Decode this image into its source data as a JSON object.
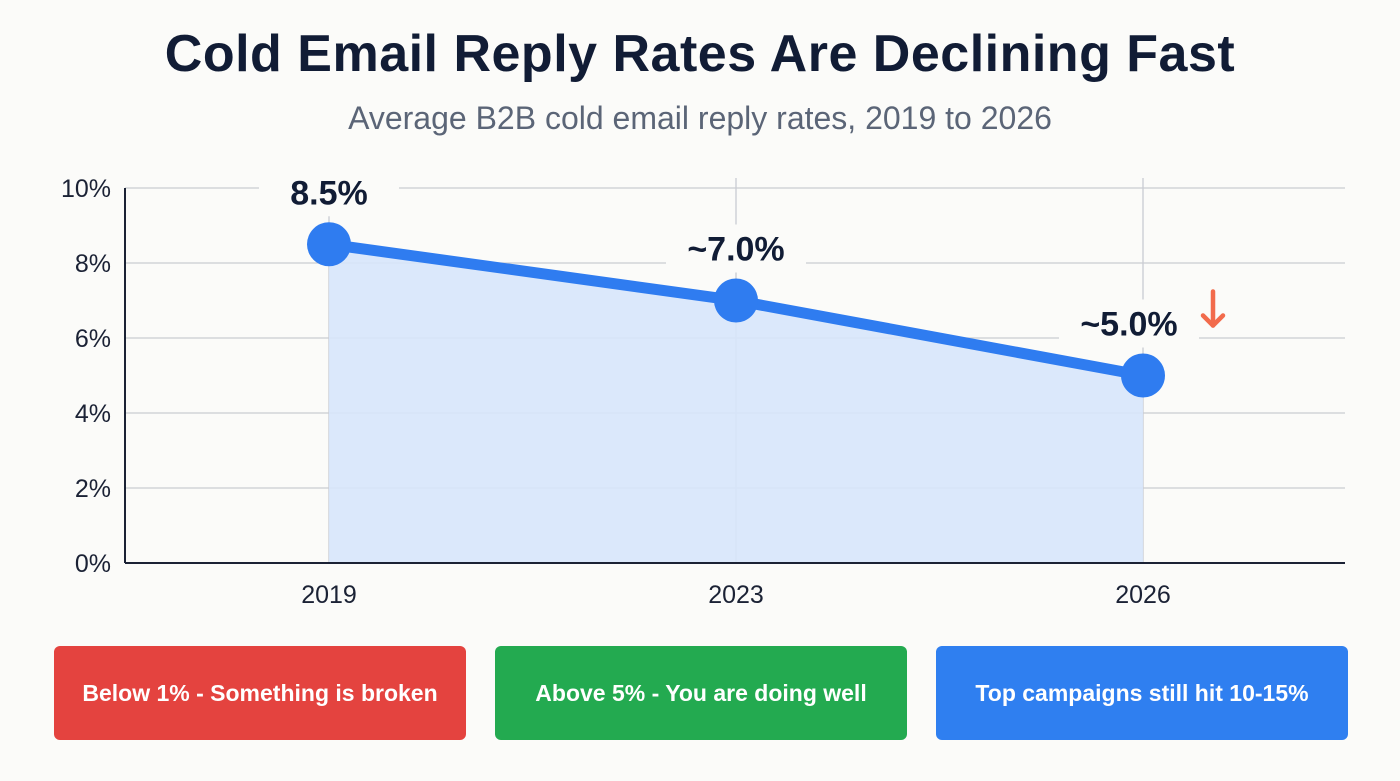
{
  "title": "Cold Email Reply Rates Are Declining Fast",
  "subtitle": "Average B2B cold email reply rates, 2019 to 2026",
  "chart_data": {
    "type": "area",
    "title": "Cold Email Reply Rates Are Declining Fast",
    "subtitle": "Average B2B cold email reply rates, 2019 to 2026",
    "categories": [
      "2019",
      "2023",
      "2026"
    ],
    "values": [
      8.5,
      7.0,
      5.0
    ],
    "data_labels": [
      "8.5%",
      "~7.0%",
      "~5.0%"
    ],
    "yticks": [
      "0%",
      "2%",
      "4%",
      "6%",
      "8%",
      "10%"
    ],
    "ylim": [
      0,
      10
    ],
    "grid": true,
    "xlabel": "",
    "ylabel": "",
    "line_color": "#2f7cf0",
    "fill_color": "#d7e6fb",
    "trend_icon": "arrow-down-icon",
    "trend_color": "#f26b4c"
  },
  "callouts": [
    {
      "text": "Below 1% - Something is broken",
      "color": "#e4433f"
    },
    {
      "text": "Above 5% - You are doing well",
      "color": "#23aa50"
    },
    {
      "text": "Top campaigns still hit 10-15%",
      "color": "#2f7ff0"
    }
  ]
}
